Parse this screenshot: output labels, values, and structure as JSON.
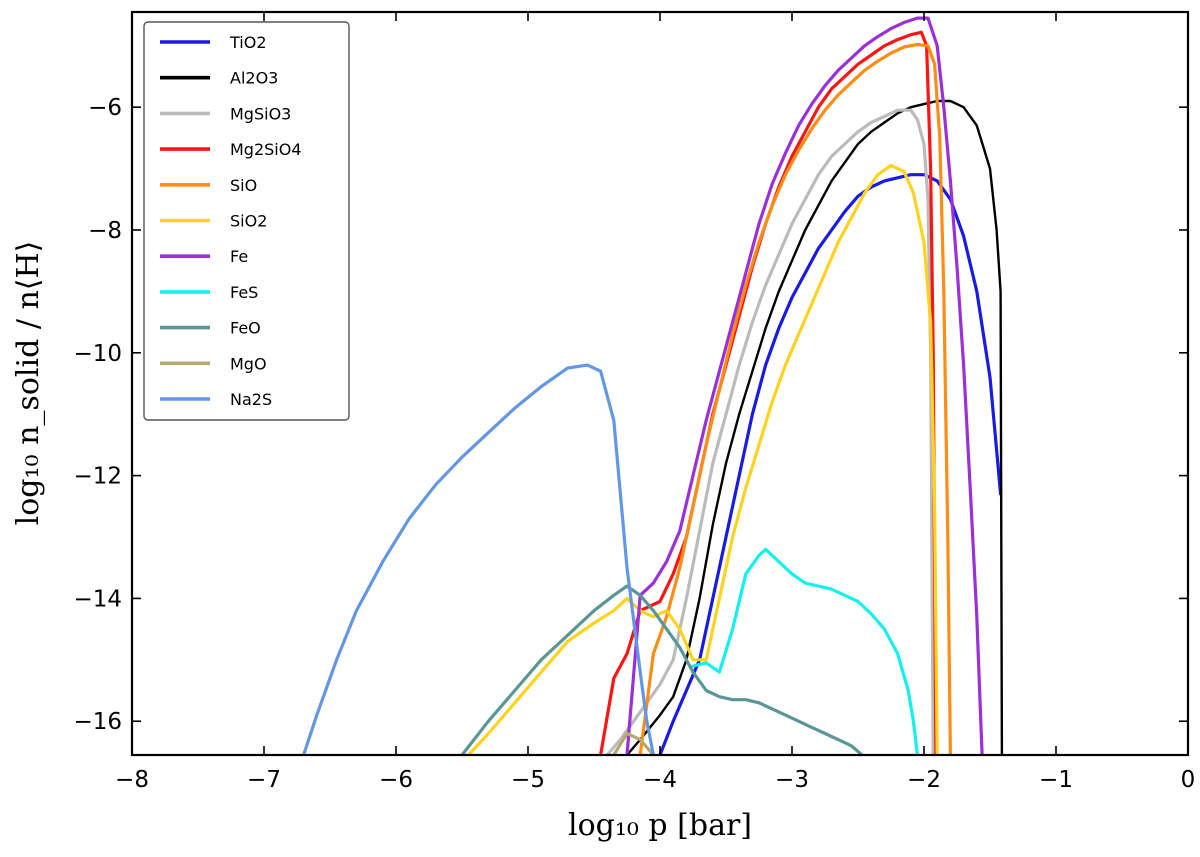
{
  "chart_data": {
    "type": "line",
    "title": "",
    "xlabel": "log₁₀ p [bar]",
    "ylabel": "log₁₀ n_solid / n⟨H⟩",
    "xlim": [
      -8,
      0
    ],
    "ylim": [
      -16.55,
      -4.45
    ],
    "xticks": [
      -8,
      -7,
      -6,
      -5,
      -4,
      -3,
      -2,
      -1,
      0
    ],
    "yticks": [
      -16,
      -14,
      -12,
      -10,
      -8,
      -6
    ],
    "grid": false,
    "legend_position": "top-left",
    "series": [
      {
        "name": "TiO2",
        "color": "#1a1ae6",
        "x": [
          -4.0,
          -3.9,
          -3.8,
          -3.7,
          -3.6,
          -3.5,
          -3.4,
          -3.3,
          -3.2,
          -3.1,
          -3.0,
          -2.9,
          -2.8,
          -2.7,
          -2.6,
          -2.5,
          -2.4,
          -2.3,
          -2.2,
          -2.1,
          -2.0,
          -1.9,
          -1.8,
          -1.7,
          -1.6,
          -1.5,
          -1.42
        ],
        "y": [
          -16.55,
          -16.0,
          -15.5,
          -15.0,
          -14.0,
          -13.0,
          -12.0,
          -11.0,
          -10.2,
          -9.6,
          -9.1,
          -8.7,
          -8.3,
          -8.0,
          -7.7,
          -7.45,
          -7.3,
          -7.2,
          -7.15,
          -7.1,
          -7.1,
          -7.2,
          -7.5,
          -8.1,
          -9.0,
          -10.4,
          -12.3
        ]
      },
      {
        "name": "Al2O3",
        "color": "#000000",
        "x": [
          -4.25,
          -4.15,
          -4.0,
          -3.9,
          -3.8,
          -3.7,
          -3.6,
          -3.5,
          -3.4,
          -3.3,
          -3.2,
          -3.1,
          -3.0,
          -2.9,
          -2.8,
          -2.7,
          -2.6,
          -2.5,
          -2.4,
          -2.3,
          -2.2,
          -2.1,
          -2.0,
          -1.9,
          -1.8,
          -1.7,
          -1.6,
          -1.5,
          -1.45,
          -1.42,
          -1.41
        ],
        "y": [
          -16.55,
          -16.3,
          -15.9,
          -15.6,
          -15.0,
          -14.0,
          -12.8,
          -11.8,
          -11.0,
          -10.3,
          -9.6,
          -9.0,
          -8.5,
          -8.0,
          -7.6,
          -7.2,
          -6.9,
          -6.6,
          -6.4,
          -6.25,
          -6.1,
          -6.0,
          -5.95,
          -5.9,
          -5.9,
          -6.0,
          -6.3,
          -7.0,
          -8.0,
          -9.0,
          -16.55
        ]
      },
      {
        "name": "MgSiO3",
        "color": "#bbbbbb",
        "x": [
          -4.4,
          -4.3,
          -4.2,
          -4.1,
          -4.0,
          -3.9,
          -3.8,
          -3.7,
          -3.6,
          -3.5,
          -3.4,
          -3.3,
          -3.2,
          -3.1,
          -3.0,
          -2.9,
          -2.8,
          -2.7,
          -2.6,
          -2.5,
          -2.4,
          -2.3,
          -2.2,
          -2.1,
          -2.05,
          -2.0,
          -1.97,
          -1.95,
          -1.93
        ],
        "y": [
          -16.55,
          -16.3,
          -16.0,
          -15.7,
          -15.4,
          -15.0,
          -14.0,
          -12.9,
          -11.8,
          -11.0,
          -10.2,
          -9.5,
          -8.9,
          -8.4,
          -7.9,
          -7.5,
          -7.1,
          -6.8,
          -6.6,
          -6.4,
          -6.25,
          -6.15,
          -6.05,
          -6.05,
          -6.2,
          -6.6,
          -7.5,
          -10.0,
          -16.55
        ]
      },
      {
        "name": "Mg2SiO4",
        "color": "#ff1414",
        "x": [
          -4.45,
          -4.35,
          -4.25,
          -4.15,
          -4.0,
          -3.9,
          -3.8,
          -3.7,
          -3.6,
          -3.5,
          -3.4,
          -3.3,
          -3.2,
          -3.1,
          -3.0,
          -2.9,
          -2.8,
          -2.7,
          -2.6,
          -2.5,
          -2.4,
          -2.3,
          -2.2,
          -2.1,
          -2.02,
          -1.98,
          -1.95,
          -1.93,
          -1.91
        ],
        "y": [
          -16.55,
          -15.3,
          -14.9,
          -14.2,
          -14.05,
          -13.6,
          -13.0,
          -12.0,
          -11.0,
          -10.2,
          -9.4,
          -8.6,
          -7.9,
          -7.3,
          -6.8,
          -6.4,
          -6.0,
          -5.7,
          -5.5,
          -5.3,
          -5.15,
          -5.0,
          -4.9,
          -4.82,
          -4.78,
          -5.0,
          -7.0,
          -10.0,
          -16.55
        ]
      },
      {
        "name": "SiO",
        "color": "#ff8c14",
        "x": [
          -4.15,
          -4.05,
          -3.95,
          -3.85,
          -3.75,
          -3.65,
          -3.55,
          -3.45,
          -3.35,
          -3.25,
          -3.15,
          -3.05,
          -2.95,
          -2.85,
          -2.75,
          -2.65,
          -2.55,
          -2.45,
          -2.35,
          -2.25,
          -2.15,
          -2.05,
          -1.97,
          -1.92,
          -1.88,
          -1.85,
          -1.82,
          -1.8
        ],
        "y": [
          -16.55,
          -14.9,
          -14.3,
          -13.5,
          -12.5,
          -11.5,
          -10.6,
          -9.7,
          -8.9,
          -8.2,
          -7.6,
          -7.1,
          -6.7,
          -6.35,
          -6.05,
          -5.8,
          -5.6,
          -5.4,
          -5.25,
          -5.12,
          -5.02,
          -4.98,
          -5.0,
          -5.3,
          -6.5,
          -9.0,
          -13.0,
          -16.55
        ]
      },
      {
        "name": "SiO2",
        "color": "#ffd21e",
        "x": [
          -5.45,
          -5.3,
          -5.1,
          -4.9,
          -4.7,
          -4.5,
          -4.35,
          -4.25,
          -4.15,
          -4.05,
          -3.95,
          -3.85,
          -3.75,
          -3.65,
          -3.55,
          -3.45,
          -3.35,
          -3.25,
          -3.15,
          -3.05,
          -2.95,
          -2.85,
          -2.75,
          -2.65,
          -2.55,
          -2.45,
          -2.35,
          -2.25,
          -2.15,
          -2.08,
          -2.0,
          -1.95,
          -1.92,
          -1.9
        ],
        "y": [
          -16.55,
          -16.2,
          -15.7,
          -15.2,
          -14.7,
          -14.4,
          -14.2,
          -14.0,
          -14.2,
          -14.3,
          -14.2,
          -14.5,
          -15.0,
          -15.0,
          -14.0,
          -13.0,
          -12.2,
          -11.5,
          -10.8,
          -10.2,
          -9.7,
          -9.2,
          -8.7,
          -8.2,
          -7.8,
          -7.4,
          -7.1,
          -6.95,
          -7.05,
          -7.4,
          -8.2,
          -9.5,
          -12.5,
          -16.55
        ]
      },
      {
        "name": "Fe",
        "color": "#9b30d9",
        "x": [
          -4.25,
          -4.15,
          -4.05,
          -3.95,
          -3.85,
          -3.75,
          -3.65,
          -3.55,
          -3.45,
          -3.35,
          -3.25,
          -3.15,
          -3.05,
          -2.95,
          -2.85,
          -2.75,
          -2.65,
          -2.55,
          -2.45,
          -2.35,
          -2.25,
          -2.15,
          -2.05,
          -1.97,
          -1.9,
          -1.85,
          -1.8,
          -1.75,
          -1.7,
          -1.65,
          -1.6,
          -1.56
        ],
        "y": [
          -16.55,
          -13.95,
          -13.75,
          -13.4,
          -12.9,
          -12.0,
          -11.1,
          -10.3,
          -9.5,
          -8.7,
          -7.9,
          -7.25,
          -6.75,
          -6.3,
          -5.95,
          -5.65,
          -5.4,
          -5.2,
          -5.0,
          -4.85,
          -4.72,
          -4.62,
          -4.55,
          -4.55,
          -5.0,
          -6.0,
          -7.2,
          -8.6,
          -10.2,
          -12.2,
          -14.3,
          -16.55
        ]
      },
      {
        "name": "FeS",
        "color": "#14f0f0",
        "x": [
          -3.75,
          -3.65,
          -3.55,
          -3.45,
          -3.35,
          -3.25,
          -3.2,
          -3.1,
          -3.0,
          -2.9,
          -2.8,
          -2.7,
          -2.6,
          -2.5,
          -2.4,
          -2.3,
          -2.2,
          -2.12,
          -2.08,
          -2.05
        ],
        "y": [
          -15.1,
          -15.05,
          -15.2,
          -14.5,
          -13.6,
          -13.3,
          -13.2,
          -13.4,
          -13.6,
          -13.75,
          -13.8,
          -13.85,
          -13.95,
          -14.05,
          -14.25,
          -14.5,
          -14.9,
          -15.5,
          -16.0,
          -16.55
        ]
      },
      {
        "name": "FeO",
        "color": "#5a9696",
        "x": [
          -5.5,
          -5.3,
          -5.1,
          -4.9,
          -4.7,
          -4.5,
          -4.35,
          -4.25,
          -4.15,
          -4.05,
          -3.95,
          -3.85,
          -3.75,
          -3.65,
          -3.55,
          -3.45,
          -3.35,
          -3.25,
          -3.15,
          -3.05,
          -2.95,
          -2.85,
          -2.75,
          -2.65,
          -2.55,
          -2.47
        ],
        "y": [
          -16.55,
          -16.0,
          -15.5,
          -15.0,
          -14.6,
          -14.2,
          -13.95,
          -13.8,
          -13.95,
          -14.2,
          -14.5,
          -14.8,
          -15.2,
          -15.5,
          -15.6,
          -15.65,
          -15.65,
          -15.7,
          -15.8,
          -15.9,
          -16.0,
          -16.1,
          -16.2,
          -16.3,
          -16.4,
          -16.55
        ]
      },
      {
        "name": "MgO",
        "color": "#b4aa6e",
        "x": [
          -4.35,
          -4.25,
          -4.15,
          -4.05
        ],
        "y": [
          -16.55,
          -16.2,
          -16.3,
          -16.55
        ]
      },
      {
        "name": "Na2S",
        "color": "#6496e6",
        "x": [
          -6.7,
          -6.6,
          -6.45,
          -6.3,
          -6.1,
          -5.9,
          -5.7,
          -5.5,
          -5.3,
          -5.1,
          -4.9,
          -4.7,
          -4.55,
          -4.45,
          -4.35,
          -4.25,
          -4.15,
          -4.1,
          -4.05
        ],
        "y": [
          -16.55,
          -15.9,
          -15.0,
          -14.2,
          -13.4,
          -12.7,
          -12.15,
          -11.7,
          -11.3,
          -10.9,
          -10.55,
          -10.25,
          -10.2,
          -10.3,
          -11.1,
          -13.5,
          -15.2,
          -16.0,
          -16.55
        ]
      }
    ]
  }
}
